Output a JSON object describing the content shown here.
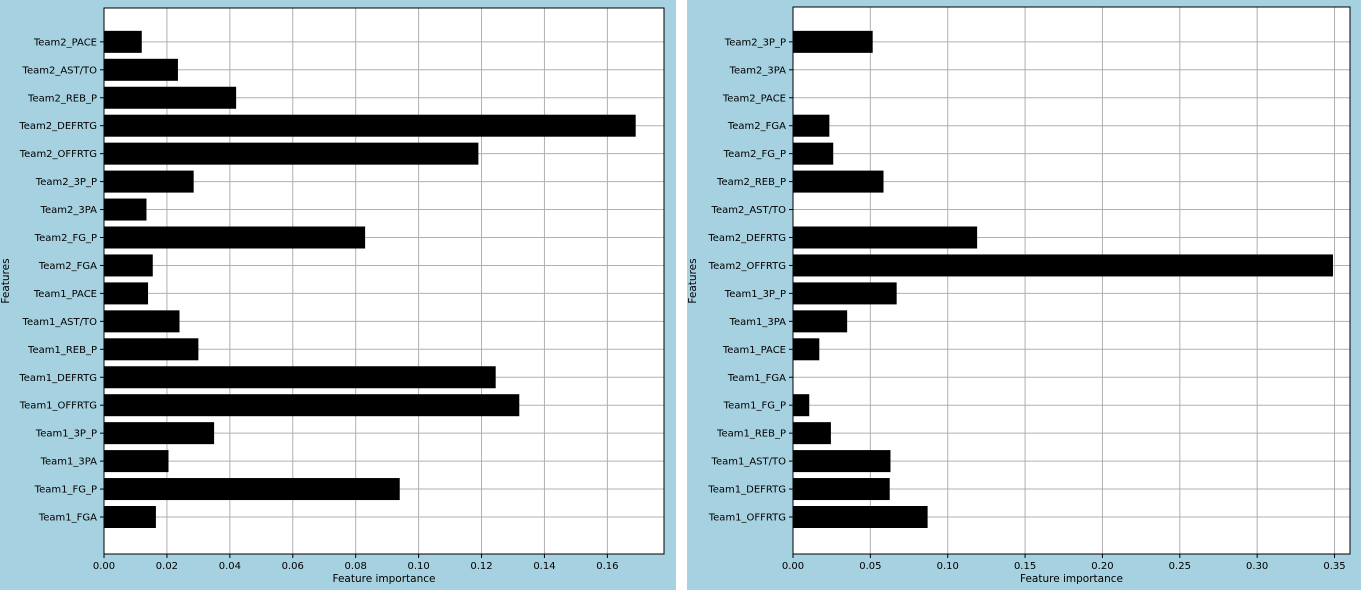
{
  "chart_data": [
    {
      "type": "bar",
      "orientation": "horizontal",
      "xlabel": "Feature importance",
      "ylabel": "Features",
      "xlim": [
        0,
        0.178
      ],
      "xticks": [
        0.0,
        0.02,
        0.04,
        0.06,
        0.08,
        0.1,
        0.12,
        0.14,
        0.16
      ],
      "xtick_labels": [
        "0.00",
        "0.02",
        "0.04",
        "0.06",
        "0.08",
        "0.10",
        "0.12",
        "0.14",
        "0.16"
      ],
      "grid": true,
      "bar_color": "#000000",
      "categories": [
        "Team1_FGA",
        "Team1_FG_P",
        "Team1_3PA",
        "Team1_3P_P",
        "Team1_OFFRTG",
        "Team1_DEFRTG",
        "Team1_REB_P",
        "Team1_AST/TO",
        "Team1_PACE",
        "Team2_FGA",
        "Team2_FG_P",
        "Team2_3PA",
        "Team2_3P_P",
        "Team2_OFFRTG",
        "Team2_DEFRTG",
        "Team2_REB_P",
        "Team2_AST/TO",
        "Team2_PACE"
      ],
      "values": [
        0.0165,
        0.094,
        0.0205,
        0.035,
        0.132,
        0.1245,
        0.03,
        0.024,
        0.014,
        0.0155,
        0.083,
        0.0135,
        0.0285,
        0.119,
        0.169,
        0.042,
        0.0235,
        0.012
      ]
    },
    {
      "type": "bar",
      "orientation": "horizontal",
      "xlabel": "Feature importance",
      "ylabel": "Features",
      "xlim": [
        0,
        0.36
      ],
      "xticks": [
        0.0,
        0.05,
        0.1,
        0.15,
        0.2,
        0.25,
        0.3,
        0.35
      ],
      "xtick_labels": [
        "0.00",
        "0.05",
        "0.10",
        "0.15",
        "0.20",
        "0.25",
        "0.30",
        "0.35"
      ],
      "grid": true,
      "bar_color": "#000000",
      "categories": [
        "Team1_OFFRTG",
        "Team1_DEFRTG",
        "Team1_AST/TO",
        "Team1_REB_P",
        "Team1_FG_P",
        "Team1_FGA",
        "Team1_PACE",
        "Team1_3PA",
        "Team1_3P_P",
        "Team2_OFFRTG",
        "Team2_DEFRTG",
        "Team2_AST/TO",
        "Team2_REB_P",
        "Team2_FG_P",
        "Team2_FGA",
        "Team2_PACE",
        "Team2_3PA",
        "Team2_3P_P"
      ],
      "values": [
        0.087,
        0.0625,
        0.063,
        0.0245,
        0.0105,
        0.0,
        0.017,
        0.035,
        0.067,
        0.349,
        0.119,
        0.0,
        0.0585,
        0.026,
        0.0235,
        0.0,
        0.0,
        0.0515
      ]
    }
  ]
}
